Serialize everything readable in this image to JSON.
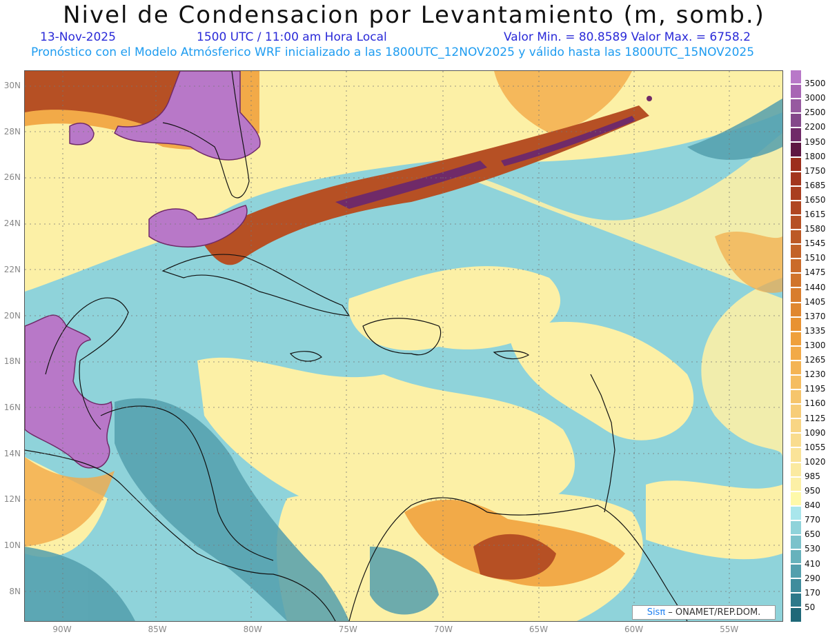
{
  "title": "Nivel de Condensacion por Levantamiento (m, somb.)",
  "date": "13-Nov-2025",
  "time": "1500 UTC / 11:00 am Hora Local",
  "min_max": "Valor Min. = 80.8589  Valor Max. = 6758.2",
  "forecast_info": "Pronóstico con el Modelo Atmósferico WRF inicializado a las 1800UTC_12NOV2025 y válido hasta las  1800UTC_15NOV2025",
  "lat_labels": [
    "30N",
    "28N",
    "26N",
    "24N",
    "22N",
    "20N",
    "18N",
    "16N",
    "14N",
    "12N",
    "10N",
    "8N"
  ],
  "lon_labels": [
    "90W",
    "85W",
    "80W",
    "75W",
    "70W",
    "65W",
    "60W",
    "55W"
  ],
  "colorbar": {
    "labels": [
      "3500",
      "3000",
      "2500",
      "2200",
      "1950",
      "1800",
      "1750",
      "1685",
      "1650",
      "1615",
      "1580",
      "1545",
      "1510",
      "1475",
      "1440",
      "1405",
      "1370",
      "1335",
      "1300",
      "1265",
      "1230",
      "1195",
      "1160",
      "1125",
      "1090",
      "1055",
      "1020",
      "985",
      "950",
      "840",
      "770",
      "650",
      "530",
      "410",
      "290",
      "170",
      "50"
    ],
    "colors": [
      "#b878c8",
      "#a865b4",
      "#975aa0",
      "#84488a",
      "#702a68",
      "#5e1642",
      "#9c2e1c",
      "#a3361e",
      "#a93e20",
      "#b04722",
      "#b65024",
      "#bc5926",
      "#c36228",
      "#ca6b2a",
      "#d1742b",
      "#d87d2d",
      "#e0872f",
      "#e89231",
      "#efa03c",
      "#f2aa48",
      "#f4b454",
      "#f5bd60",
      "#f6c56c",
      "#f7cd78",
      "#f8d584",
      "#f9dc8e",
      "#fae398",
      "#fbeaa0",
      "#fcf0a6",
      "#fef9aa",
      "#a9e6ec",
      "#8fd3da",
      "#7bc2cb",
      "#67b2bc",
      "#539fad",
      "#3f8c9c",
      "#2d798a",
      "#1f6878"
    ]
  },
  "credit": {
    "brand": "Sisπ",
    "text": " – ONAMET/REP.DOM."
  }
}
